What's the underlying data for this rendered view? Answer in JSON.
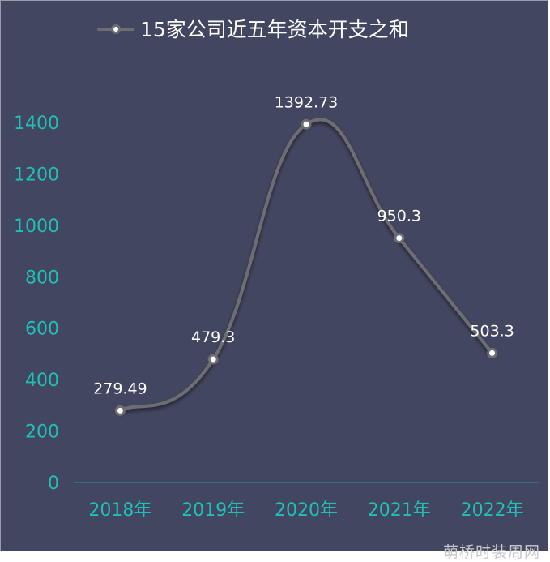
{
  "chart_data": {
    "type": "line",
    "title": "",
    "categories": [
      "2018年",
      "2019年",
      "2020年",
      "2021年",
      "2022年"
    ],
    "series": [
      {
        "name": "15家公司近五年资本开支之和",
        "values": [
          279.49,
          479.3,
          1392.73,
          950.3,
          503.3
        ],
        "labels": [
          "279.49",
          "479.3",
          "1392.73",
          "950.3",
          "503.3"
        ]
      }
    ],
    "yticks": [
      "0",
      "200",
      "400",
      "600",
      "800",
      "1000",
      "1200",
      "1400"
    ],
    "ylim": [
      0,
      1400
    ],
    "smooth": true,
    "legend_position": "top-center",
    "grid": false,
    "colors": {
      "background": "#434660",
      "line": "#6e6e72",
      "marker_fill": "#ffffff",
      "axis_text": "#1fc0b8",
      "axis_line": "#1f8f8a",
      "label_text": "#ffffff",
      "legend_text": "#ffffff"
    }
  },
  "watermark": "萌桥时装周网"
}
